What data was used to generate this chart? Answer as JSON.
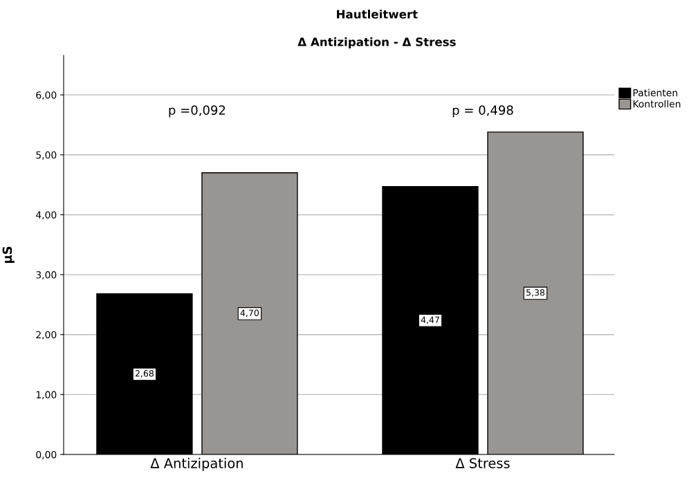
{
  "chart_data": {
    "type": "bar",
    "title": "Hautleitwert",
    "subtitle": "Δ Antizipation - Δ Stress",
    "ylabel": "µS",
    "categories": [
      "Δ Antizipation",
      "Δ Stress"
    ],
    "series": [
      {
        "name": "Patienten",
        "color": "#000000",
        "values": [
          2.68,
          4.47
        ],
        "value_labels": [
          "2,68",
          "4,47"
        ]
      },
      {
        "name": "Kontrollen",
        "color": "#999593",
        "values": [
          4.7,
          5.38
        ],
        "value_labels": [
          "4,70",
          "5,38"
        ]
      }
    ],
    "ylim": [
      0,
      6.66
    ],
    "yticks": [
      {
        "value": 0,
        "label": "0,00"
      },
      {
        "value": 1,
        "label": "1,00"
      },
      {
        "value": 2,
        "label": "2,00"
      },
      {
        "value": 3,
        "label": "3,00"
      },
      {
        "value": 4,
        "label": "4,00"
      },
      {
        "value": 5,
        "label": "5,00"
      },
      {
        "value": 6,
        "label": "6,00"
      }
    ],
    "grid": "y",
    "legend": "top right",
    "annotations": [
      "p =0,092",
      "p = 0,498"
    ]
  }
}
